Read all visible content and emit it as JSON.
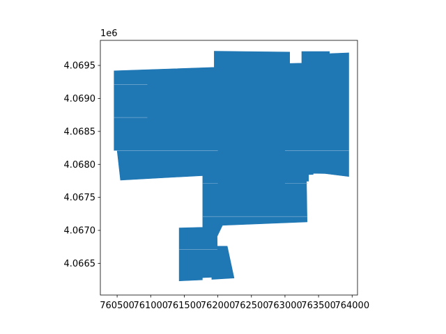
{
  "chart_data": {
    "type": "map",
    "title": "",
    "xlabel": "",
    "ylabel": "",
    "grid": false,
    "legend": "none",
    "fill_color": "#1f77b4",
    "edge_color": "#8fb7d8",
    "xlim": [
      760250,
      764080
    ],
    "ylim": [
      4066020,
      4069880
    ],
    "x_ticks": [
      760500,
      761000,
      761500,
      762000,
      762500,
      763000,
      763500,
      764000
    ],
    "x_tick_labels": [
      "760500",
      "761000",
      "761500",
      "762000",
      "762500",
      "763000",
      "763500",
      "764000"
    ],
    "y_ticks": [
      4066500,
      4067000,
      4067500,
      4068000,
      4068500,
      4069000,
      4069500
    ],
    "y_tick_labels": [
      "4.0665",
      "4.0670",
      "4.0675",
      "4.0680",
      "4.0685",
      "4.0690",
      "4.0695"
    ],
    "y_offset_text": "1e6",
    "polygons": [
      [
        [
          760454,
          4069418
        ],
        [
          761946,
          4069471
        ],
        [
          761946,
          4069715
        ],
        [
          762489,
          4069709
        ],
        [
          763070,
          4069703
        ],
        [
          763070,
          4069530
        ],
        [
          763250,
          4069534
        ],
        [
          763250,
          4069711
        ],
        [
          763662,
          4069711
        ],
        [
          763662,
          4069679
        ],
        [
          763950,
          4069691
        ],
        [
          763950,
          4067816
        ],
        [
          763600,
          4067860
        ],
        [
          763420,
          4067865
        ],
        [
          763420,
          4067848
        ],
        [
          763350,
          4067845
        ],
        [
          763350,
          4067745
        ],
        [
          763320,
          4067745
        ],
        [
          763330,
          4067128
        ],
        [
          762070,
          4067077
        ],
        [
          761990,
          4066908
        ],
        [
          761992,
          4066760
        ],
        [
          762140,
          4066760
        ],
        [
          762242,
          4066277
        ],
        [
          761910,
          4066257
        ],
        [
          761910,
          4066290
        ],
        [
          761770,
          4066283
        ],
        [
          761770,
          4066250
        ],
        [
          761424,
          4066234
        ],
        [
          761424,
          4067037
        ],
        [
          761775,
          4067046
        ],
        [
          761775,
          4067830
        ],
        [
          760550,
          4067761
        ],
        [
          760500,
          4068210
        ],
        [
          760454,
          4068210
        ]
      ]
    ],
    "edges": [
      [
        [
          760454,
          4069210
        ],
        [
          760950,
          4069210
        ]
      ],
      [
        [
          760454,
          4068710
        ],
        [
          760950,
          4068710
        ]
      ],
      [
        [
          760454,
          4068210
        ],
        [
          762000,
          4068210
        ]
      ],
      [
        [
          763000,
          4068210
        ],
        [
          763950,
          4068210
        ]
      ],
      [
        [
          761775,
          4067710
        ],
        [
          762000,
          4067710
        ]
      ],
      [
        [
          763000,
          4067710
        ],
        [
          763340,
          4067710
        ]
      ],
      [
        [
          761775,
          4067210
        ],
        [
          763330,
          4067210
        ]
      ],
      [
        [
          761424,
          4066710
        ],
        [
          761992,
          4066710
        ]
      ]
    ]
  }
}
